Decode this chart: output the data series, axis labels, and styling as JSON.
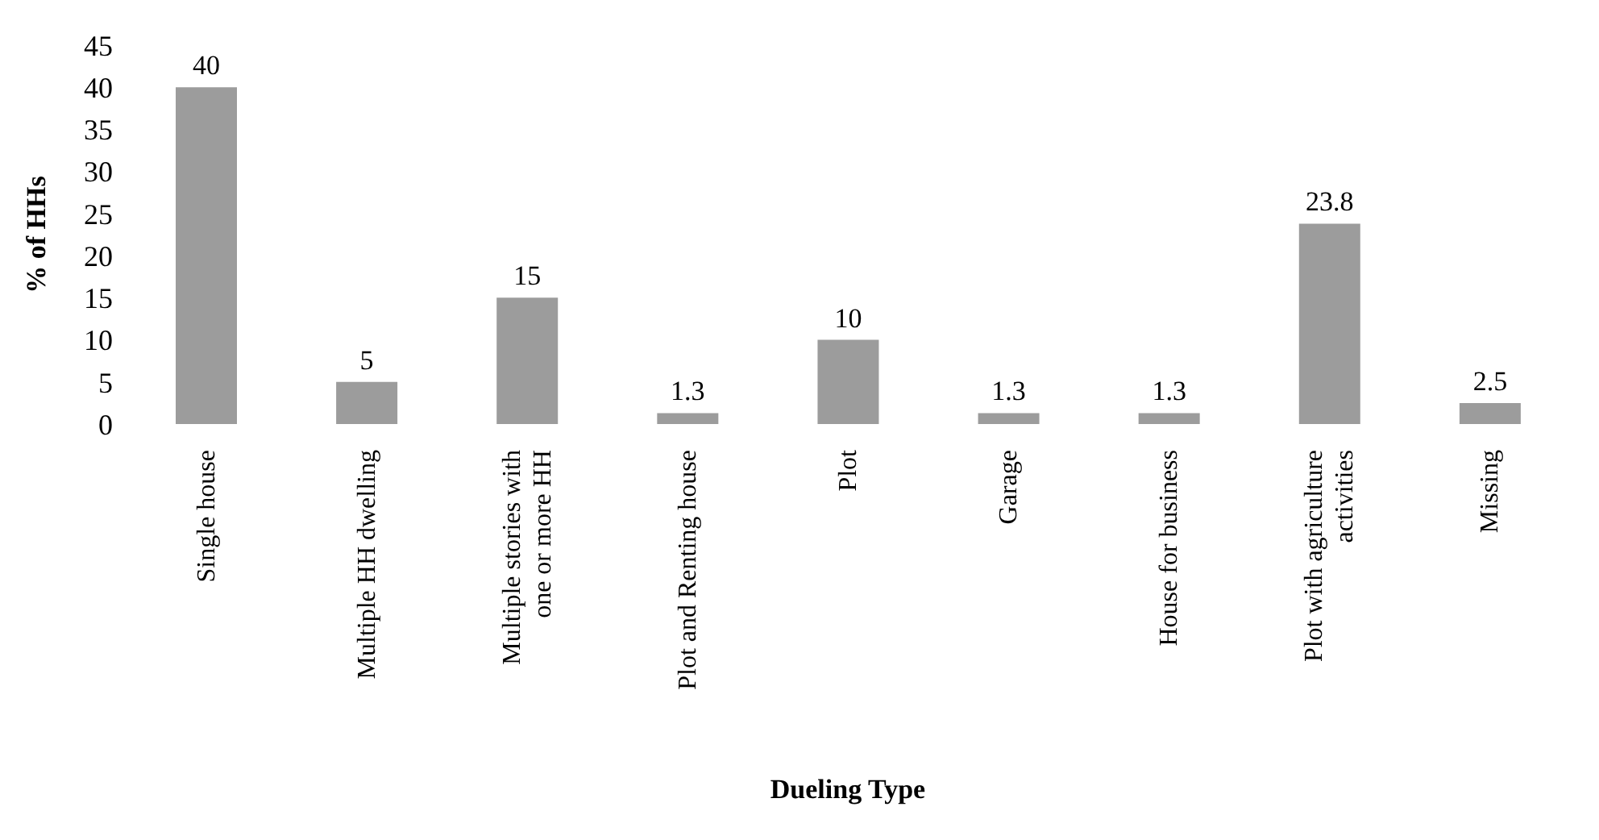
{
  "chart_data": {
    "type": "bar",
    "xlabel": "Dueling Type",
    "ylabel": "% of HHs",
    "categories": [
      "Single house",
      "Multiple HH dwelling",
      "Multiple stories with one or more HH",
      "Plot and Renting house",
      "Plot",
      "Garage",
      "House for business",
      "Plot with agriculture activities",
      "Missing"
    ],
    "values": [
      40,
      5,
      15,
      1.3,
      10,
      1.3,
      1.3,
      23.8,
      2.5
    ],
    "color": "#9c9c9c",
    "ylim": [
      0,
      45
    ],
    "yticks": [
      0,
      5,
      10,
      15,
      20,
      25,
      30,
      35,
      40,
      45
    ],
    "data_labels": true,
    "grid": false,
    "legend": false
  }
}
